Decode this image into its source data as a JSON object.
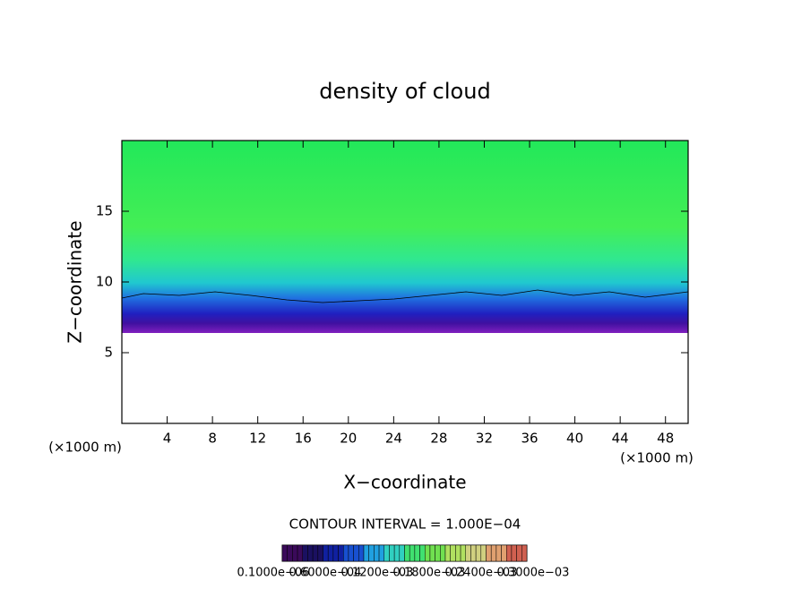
{
  "chart_data": {
    "type": "heatmap",
    "title": "density of cloud",
    "x_label": "X−coordinate",
    "y_label": "Z−coordinate",
    "x_unit_left": "(×1000 m)",
    "x_unit_right": "(×1000 m)",
    "contour_note": "CONTOUR INTERVAL = 1.000E−04",
    "xlim": [
      0,
      50
    ],
    "xticks": [
      4,
      8,
      12,
      16,
      20,
      24,
      28,
      32,
      36,
      40,
      44,
      48
    ],
    "ylim": [
      0,
      20
    ],
    "yticks": [
      5,
      10,
      15
    ],
    "colorbar_colors": [
      "#3a0a5a",
      "#1a1060",
      "#1020a0",
      "#1850d0",
      "#20a0e0",
      "#30d0c0",
      "#40e070",
      "#70e050",
      "#b0e060",
      "#d0d080",
      "#e0a070",
      "#d06050"
    ],
    "colorbar_labels": [
      "0.1000e−06",
      "0.6000e−04",
      "0.1200e−03",
      "0.1800e−03",
      "0.2400e−03",
      "0.3000e−03"
    ]
  }
}
